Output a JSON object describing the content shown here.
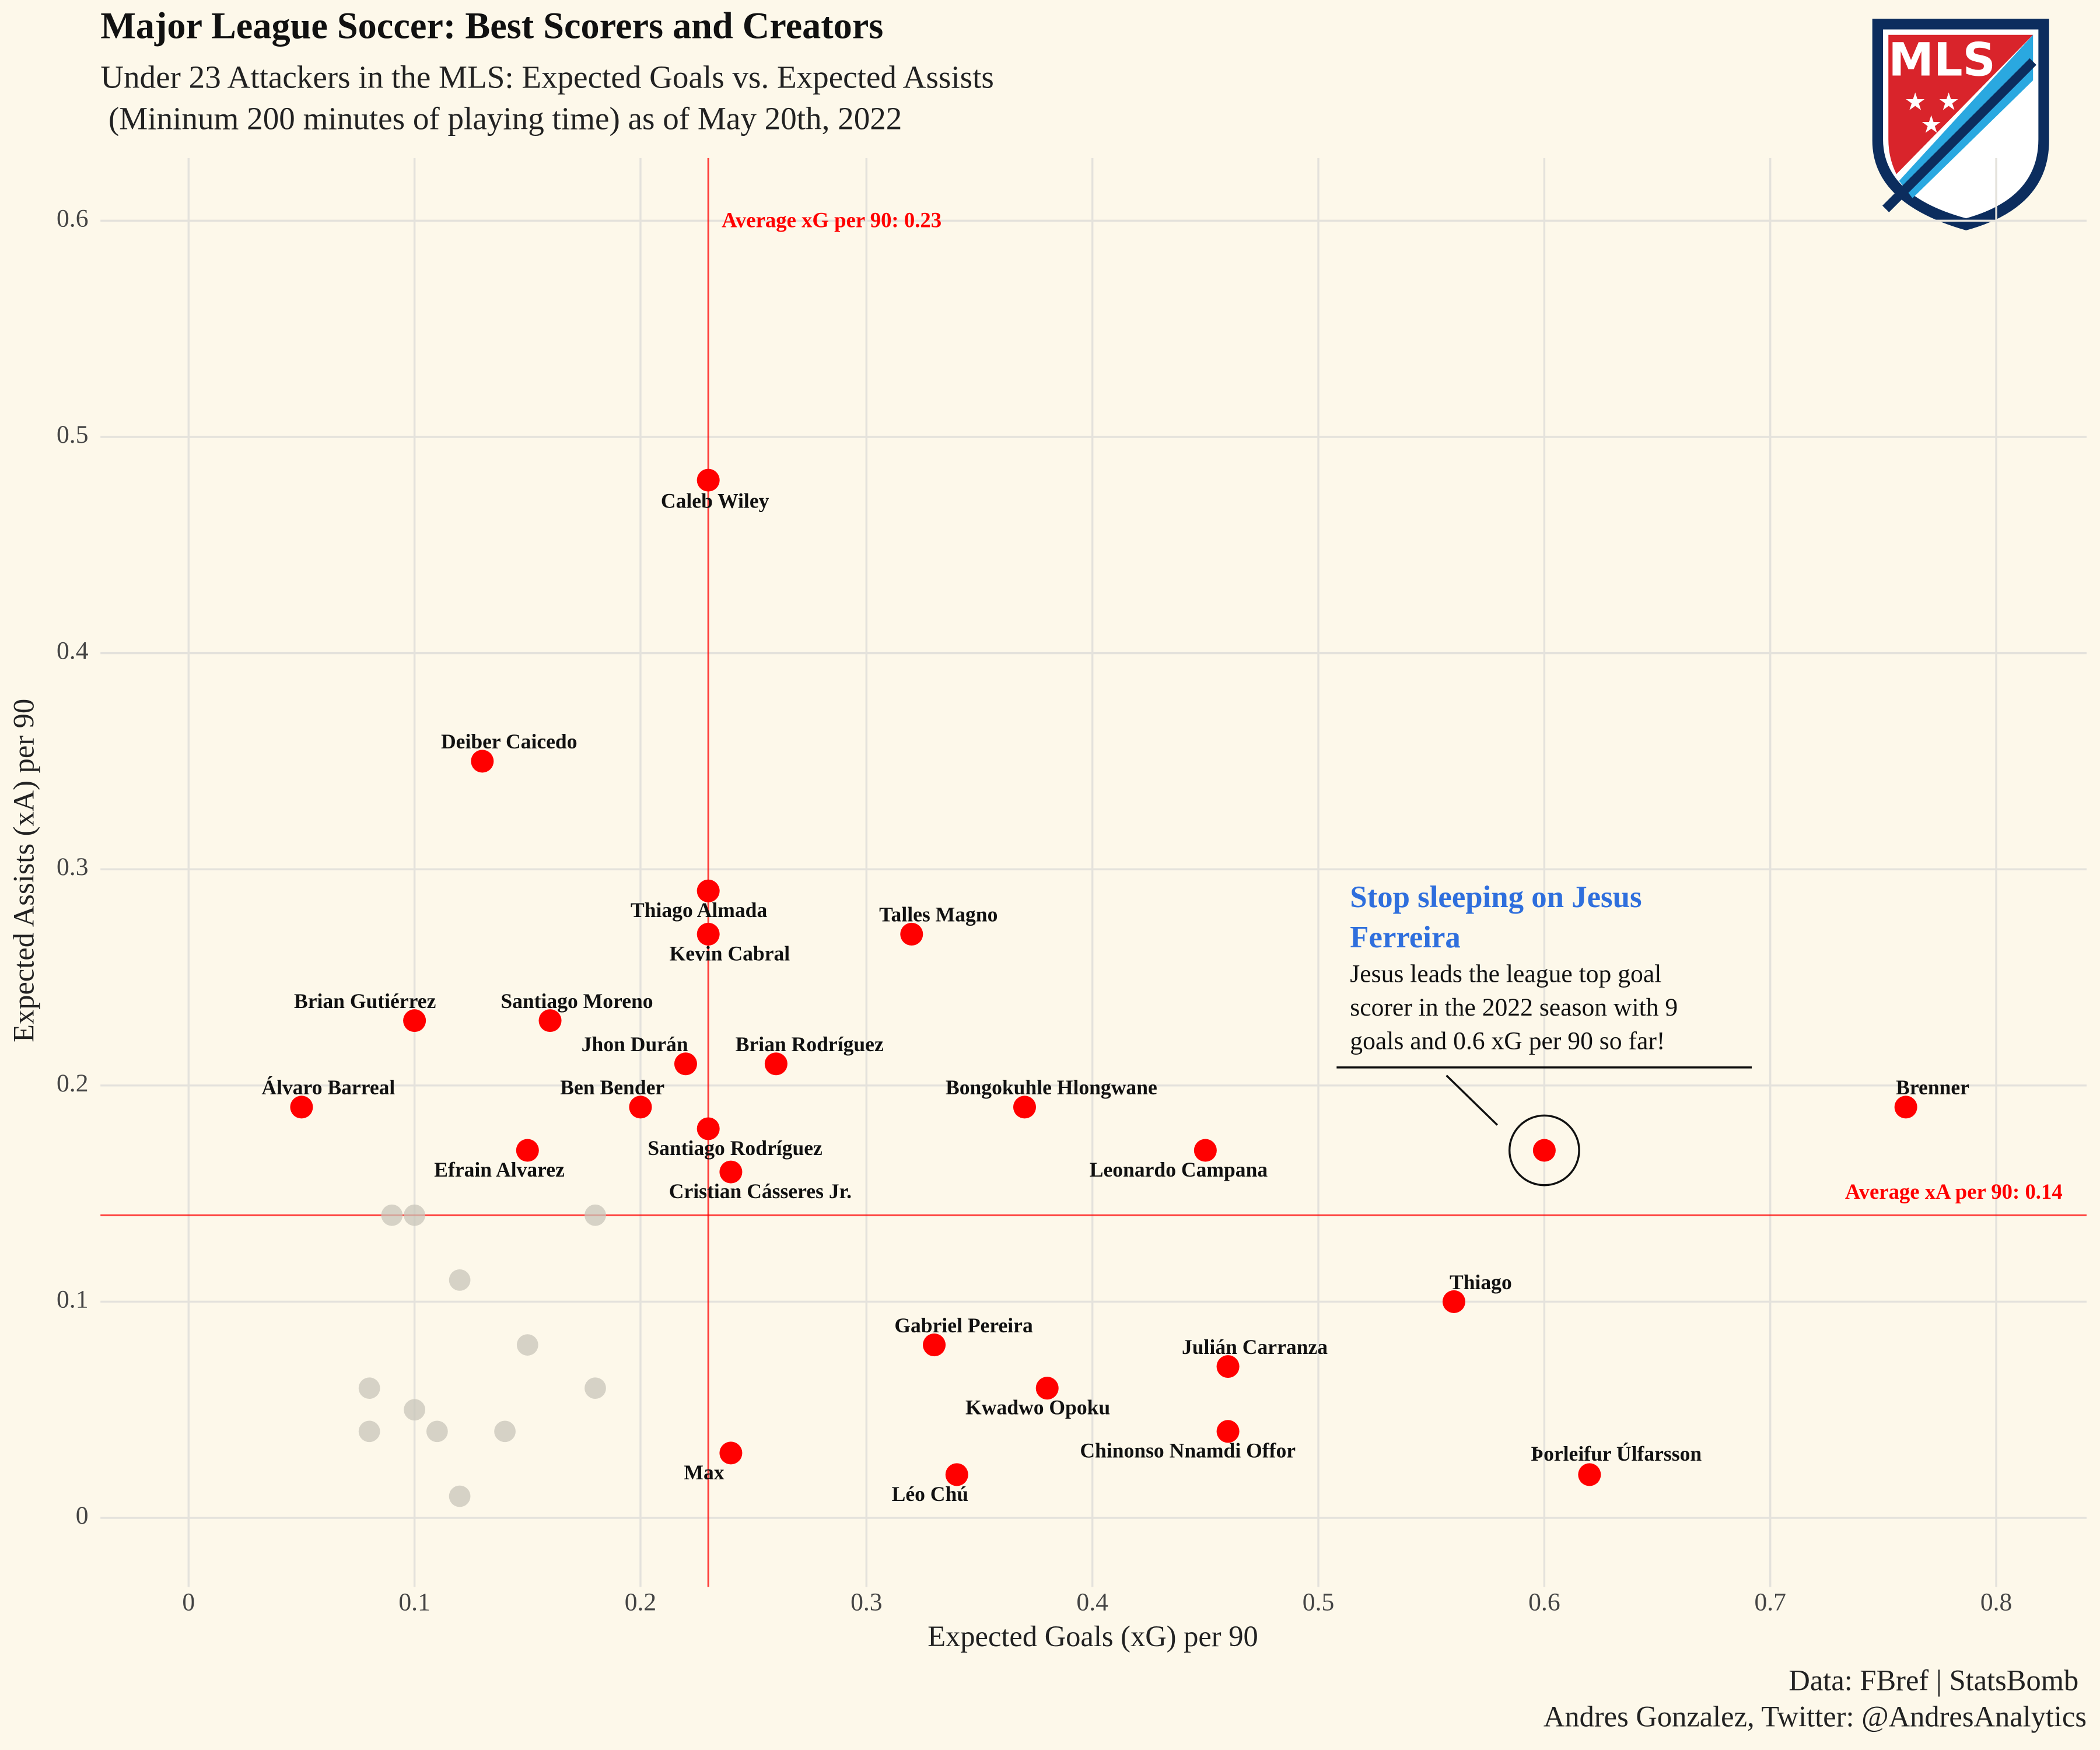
{
  "chart_data": {
    "type": "scatter",
    "title": "Major League Soccer: Best Scorers and Creators",
    "subtitle": [
      "Under 23 Attackers in the MLS: Expected Goals vs. Expected Assists",
      " (Mininum 200 minutes of playing time) as of May 20th, 2022"
    ],
    "x_label": "Expected Goals (xG) per 90",
    "y_label": "Expected Assists (xA) per 90",
    "xlim": [
      -0.039,
      0.84
    ],
    "ylim": [
      -0.032,
      0.629
    ],
    "xticks": [
      0,
      0.1,
      0.2,
      0.3,
      0.4,
      0.5,
      0.6,
      0.7,
      0.8
    ],
    "yticks": [
      0,
      0.1,
      0.2,
      0.3,
      0.4,
      0.5,
      0.6
    ],
    "grid": true,
    "series": [
      {
        "color": "#ff0000",
        "names": [
          "Caleb Wiley",
          "Deiber Caicedo",
          "Thiago Almada",
          "Kevin Cabral",
          "Talles Magno",
          "Brian Gutiérrez",
          "Santiago Moreno",
          "Jhon Durán",
          "Brian Rodríguez",
          "Álvaro Barreal",
          "Ben Bender",
          "Bongokuhle Hlongwane",
          "Brenner",
          "Santiago Rodríguez",
          "Efrain Alvarez",
          "Leonardo Campana",
          "Cristian Cásseres Jr.",
          "Thiago",
          "Gabriel Pereira",
          "Julián Carranza",
          "Kwadwo Opoku",
          "Chinonso Nnamdi Offor",
          "Max",
          "Léo Chú",
          "Þorleifur Úlfarsson"
        ],
        "x": [
          0.23,
          0.13,
          0.23,
          0.23,
          0.32,
          0.1,
          0.16,
          0.22,
          0.26,
          0.05,
          0.2,
          0.37,
          0.76,
          0.23,
          0.15,
          0.45,
          0.24,
          0.56,
          0.33,
          0.46,
          0.38,
          0.46,
          0.24,
          0.34,
          0.62
        ],
        "values": [
          0.48,
          0.35,
          0.29,
          0.27,
          0.27,
          0.23,
          0.23,
          0.21,
          0.21,
          0.19,
          0.19,
          0.19,
          0.19,
          0.18,
          0.17,
          0.17,
          0.16,
          0.1,
          0.08,
          0.07,
          0.06,
          0.04,
          0.03,
          0.02,
          0.02
        ]
      },
      {
        "color": "#ff0000",
        "x": [
          0.6
        ],
        "values": [
          0.17
        ]
      },
      {
        "color": "#c8c5ba",
        "x": [
          0.09,
          0.1,
          0.18,
          0.12,
          0.15,
          0.08,
          0.18,
          0.1,
          0.08,
          0.11,
          0.14,
          0.12
        ],
        "values": [
          0.14,
          0.14,
          0.14,
          0.11,
          0.08,
          0.06,
          0.06,
          0.05,
          0.04,
          0.04,
          0.04,
          0.01
        ]
      }
    ],
    "mean_x": {
      "value": 0.23,
      "label": "Average xG per 90: 0.23",
      "color": "#ff0000"
    },
    "mean_y": {
      "value": 0.14,
      "label": "Average xA per 90: 0.14",
      "color": "#ff0000"
    },
    "annotation": {
      "title": [
        "Stop sleeping on Jesus",
        "Ferreira"
      ],
      "body": [
        "Jesus leads the league top goal",
        "scorer in the 2022 season with 9",
        "goals and 0.6 xG per 90 so far!"
      ]
    },
    "logo_text": "MLS",
    "caption": [
      "Data: FBref | StatsBomb",
      "Andres Gonzalez, Twitter: @AndresAnalytics"
    ]
  }
}
